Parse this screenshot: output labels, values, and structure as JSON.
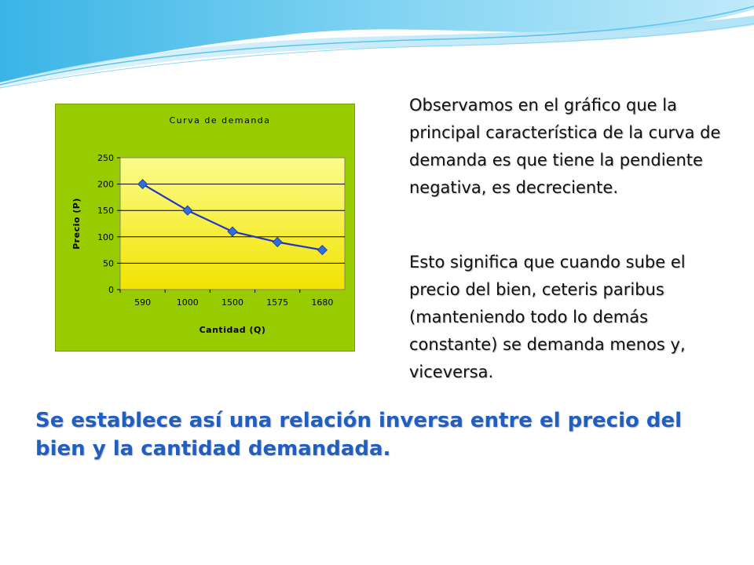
{
  "colors": {
    "chart_background": "#99cc00",
    "plot_gradient_top": "#fcfc8c",
    "plot_gradient_bottom": "#f2e300",
    "line": "#1f35c8",
    "marker": "#2d6fe0",
    "conclusion_text": "#1f5fc2"
  },
  "text": {
    "paragraph_1": "Observamos en el gráfico que la principal característica de la curva de demanda es que tiene la pendiente negativa, es decreciente.",
    "paragraph_2": "Esto significa que cuando sube el precio del bien, ceteris paribus (manteniendo todo lo demás constante) se demanda menos y, viceversa.",
    "conclusion": "Se establece así una relación inversa entre el precio del bien y la cantidad demandada."
  },
  "chart_data": {
    "type": "line",
    "title": "Curva de demanda",
    "xlabel": "Cantidad (Q)",
    "ylabel": "Precio (P)",
    "categories": [
      "590",
      "1000",
      "1500",
      "1575",
      "1680"
    ],
    "series": [
      {
        "values": [
          200,
          150,
          110,
          90,
          75
        ]
      }
    ],
    "ylim": [
      0,
      250
    ],
    "yticks": [
      0,
      50,
      100,
      150,
      200,
      250
    ],
    "grid": true,
    "legend": "none",
    "marker": "diamond"
  }
}
